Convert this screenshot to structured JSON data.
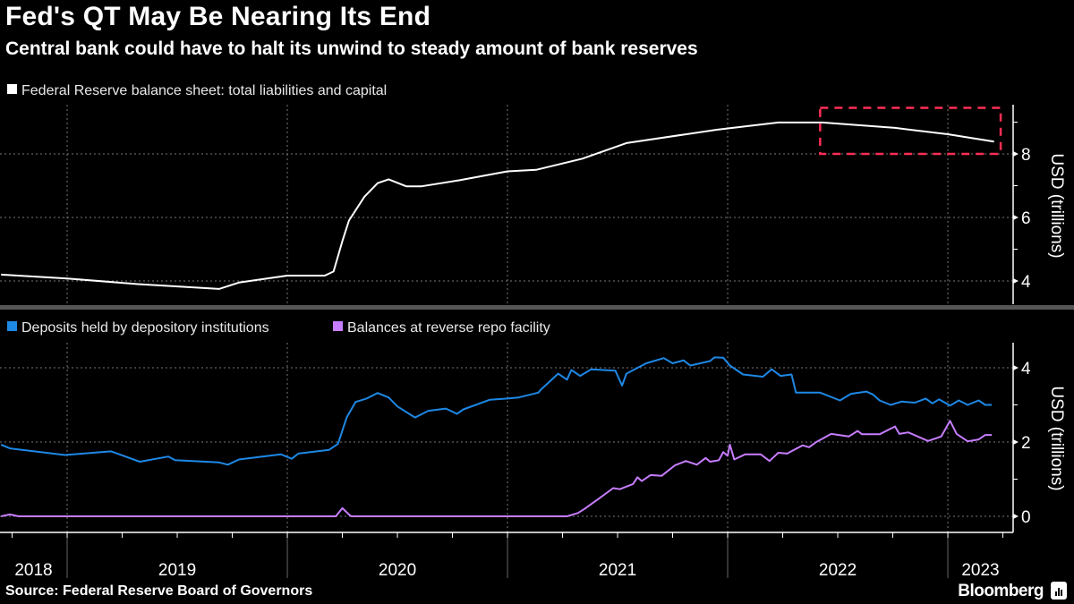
{
  "header": {
    "title": "Fed's QT May Be Nearing Its End",
    "subtitle": "Central bank could have to halt its unwind to steady amount of bank reserves"
  },
  "footer": {
    "source": "Source: Federal Reserve Board of Governors",
    "brand": "Bloomberg"
  },
  "colors": {
    "total": "#ffffff",
    "deposits": "#1e88e5",
    "reverse_repo": "#c77dff",
    "highlight_box": "#ff2d55",
    "grid": "#777777"
  },
  "chart_data": [
    {
      "type": "line",
      "title": "Federal Reserve balance sheet: total liabilities and capital",
      "ylabel": "USD (trillions)",
      "ylim": [
        3.27,
        9.55
      ],
      "xlim": [
        2018.695,
        2023.3
      ],
      "yticks": [
        4,
        6,
        8
      ],
      "grid": true,
      "annotations": [
        {
          "type": "dashed-box",
          "x": [
            2022.42,
            2023.24
          ],
          "y": [
            8,
            9.45
          ]
        }
      ],
      "series": [
        {
          "name": "Federal Reserve balance sheet: total liabilities and capital",
          "x": [
            2018.7,
            2019.0,
            2019.32,
            2019.69,
            2019.78,
            2020.0,
            2020.17,
            2020.21,
            2020.25,
            2020.28,
            2020.35,
            2020.41,
            2020.46,
            2020.54,
            2020.61,
            2020.78,
            2021.0,
            2021.13,
            2021.34,
            2021.54,
            2021.95,
            2022.23,
            2022.43,
            2022.76,
            2023.0,
            2023.21
          ],
          "y": [
            4.2,
            4.08,
            3.9,
            3.75,
            3.95,
            4.17,
            4.17,
            4.3,
            5.25,
            5.9,
            6.65,
            7.08,
            7.2,
            6.98,
            6.98,
            7.17,
            7.45,
            7.5,
            7.85,
            8.34,
            8.76,
            8.99,
            8.99,
            8.82,
            8.62,
            8.39
          ]
        }
      ]
    },
    {
      "type": "line",
      "ylabel": "USD (trillions)",
      "ylim": [
        -0.43,
        4.67
      ],
      "xlim": [
        2018.695,
        2023.3
      ],
      "yticks": [
        0,
        2,
        4
      ],
      "grid": true,
      "x_tick_labels": [
        "2018",
        "2019",
        "2020",
        "2021",
        "2022",
        "2023"
      ],
      "series": [
        {
          "name": "Deposits held by depository institutions",
          "x": [
            2018.7,
            2018.74,
            2018.99,
            2019.2,
            2019.33,
            2019.46,
            2019.49,
            2019.69,
            2019.73,
            2019.78,
            2019.97,
            2020.02,
            2020.05,
            2020.19,
            2020.23,
            2020.27,
            2020.31,
            2020.36,
            2020.41,
            2020.46,
            2020.5,
            2020.58,
            2020.64,
            2020.72,
            2020.77,
            2020.8,
            2020.92,
            2021.0,
            2021.05,
            2021.14,
            2021.15,
            2021.23,
            2021.27,
            2021.29,
            2021.33,
            2021.38,
            2021.49,
            2021.52,
            2021.54,
            2021.63,
            2021.71,
            2021.75,
            2021.8,
            2021.83,
            2021.92,
            2021.94,
            2021.98,
            2022.01,
            2022.07,
            2022.16,
            2022.2,
            2022.24,
            2022.29,
            2022.31,
            2022.42,
            2022.51,
            2022.56,
            2022.63,
            2022.66,
            2022.69,
            2022.74,
            2022.79,
            2022.85,
            2022.9,
            2022.93,
            2022.96,
            2023.01,
            2023.05,
            2023.09,
            2023.14,
            2023.17,
            2023.2
          ],
          "y": [
            1.93,
            1.83,
            1.65,
            1.75,
            1.47,
            1.61,
            1.51,
            1.45,
            1.39,
            1.53,
            1.67,
            1.55,
            1.69,
            1.79,
            1.95,
            2.67,
            3.08,
            3.17,
            3.32,
            3.2,
            2.96,
            2.66,
            2.84,
            2.9,
            2.76,
            2.88,
            3.14,
            3.17,
            3.2,
            3.33,
            3.4,
            3.84,
            3.68,
            3.94,
            3.78,
            3.96,
            3.92,
            3.52,
            3.84,
            4.12,
            4.26,
            4.12,
            4.2,
            4.06,
            4.18,
            4.28,
            4.27,
            4.06,
            3.82,
            3.76,
            3.96,
            3.78,
            3.82,
            3.33,
            3.33,
            3.12,
            3.3,
            3.36,
            3.28,
            3.12,
            3.0,
            3.09,
            3.06,
            3.17,
            3.04,
            3.15,
            2.98,
            3.12,
            3.0,
            3.12,
            3.0,
            3.0
          ]
        },
        {
          "name": "Balances at reverse repo facility",
          "x": [
            2018.7,
            2018.74,
            2018.78,
            2020.22,
            2020.25,
            2020.28,
            2020.29,
            2021.27,
            2021.32,
            2021.35,
            2021.42,
            2021.48,
            2021.51,
            2021.57,
            2021.59,
            2021.61,
            2021.65,
            2021.7,
            2021.76,
            2021.81,
            2021.86,
            2021.9,
            2021.92,
            2021.96,
            2021.98,
            2022.0,
            2022.01,
            2022.03,
            2022.08,
            2022.15,
            2022.19,
            2022.23,
            2022.27,
            2022.34,
            2022.37,
            2022.4,
            2022.47,
            2022.55,
            2022.59,
            2022.61,
            2022.69,
            2022.76,
            2022.78,
            2022.82,
            2022.91,
            2022.97,
            2023.01,
            2023.04,
            2023.09,
            2023.14,
            2023.17,
            2023.2
          ],
          "y": [
            0,
            0.05,
            0,
            0,
            0.22,
            0.05,
            0,
            0,
            0.09,
            0.2,
            0.5,
            0.76,
            0.73,
            0.87,
            1.05,
            0.95,
            1.11,
            1.09,
            1.37,
            1.49,
            1.39,
            1.57,
            1.47,
            1.51,
            1.73,
            1.63,
            1.93,
            1.53,
            1.67,
            1.67,
            1.49,
            1.71,
            1.69,
            1.91,
            1.86,
            1.99,
            2.22,
            2.15,
            2.3,
            2.21,
            2.21,
            2.42,
            2.22,
            2.26,
            2.03,
            2.15,
            2.57,
            2.22,
            2.02,
            2.07,
            2.19,
            2.19
          ]
        }
      ]
    }
  ]
}
